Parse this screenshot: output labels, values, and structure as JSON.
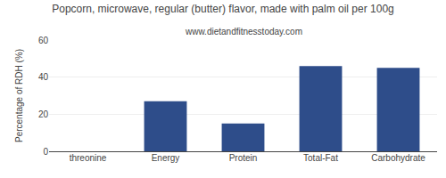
{
  "chart_data": {
    "type": "bar",
    "title": "Popcorn, microwave, regular (butter) flavor, made with palm oil per 100g",
    "subtitle": "www.dietandfitnesstoday.com",
    "ylabel": "Percentage of RDH (%)",
    "categories": [
      "threonine",
      "Energy",
      "Protein",
      "Total-Fat",
      "Carbohydrate"
    ],
    "values": [
      0,
      27,
      15,
      46,
      45
    ],
    "color": "#2e4d8a",
    "ylim": [
      0,
      60
    ],
    "yticks": [
      0,
      20,
      40,
      60
    ],
    "grid": true
  }
}
